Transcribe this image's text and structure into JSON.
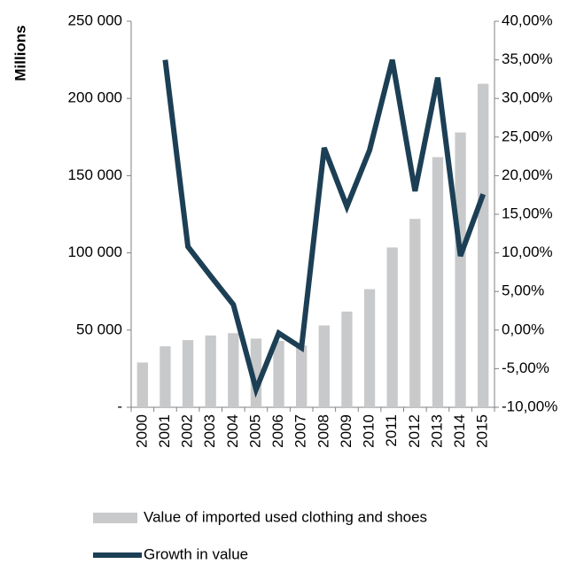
{
  "chart_data": {
    "type": "bar-line",
    "ylabel": "Millions",
    "categories": [
      "2000",
      "2001",
      "2002",
      "2003",
      "2004",
      "2005",
      "2006",
      "2007",
      "2008",
      "2009",
      "2010",
      "2011",
      "2012",
      "2013",
      "2014",
      "2015"
    ],
    "series": [
      {
        "name": "Value of imported used clothing and shoes",
        "type": "bar",
        "color": "#c8c9cb",
        "values": [
          29000,
          39500,
          43500,
          46500,
          48000,
          44500,
          43000,
          40000,
          53000,
          62000,
          76500,
          103500,
          122000,
          162000,
          178000,
          209500
        ]
      },
      {
        "name": "Growth in value",
        "type": "line",
        "axis": "y2",
        "color": "#1c3f55",
        "values": [
          null,
          35,
          10.8,
          7,
          3.3,
          -7.7,
          -0.4,
          -2.3,
          23.6,
          16,
          23.3,
          35,
          18,
          32.7,
          9.6,
          17.6
        ]
      }
    ],
    "ylim": [
      0,
      250000
    ],
    "yticks": [
      {
        "value": 0,
        "label": "-"
      },
      {
        "value": 50000,
        "label": "50 000"
      },
      {
        "value": 100000,
        "label": "100 000"
      },
      {
        "value": 150000,
        "label": "150 000"
      },
      {
        "value": 200000,
        "label": "200 000"
      },
      {
        "value": 250000,
        "label": "250 000"
      }
    ],
    "y2lim": [
      -10,
      40
    ],
    "y2ticks": [
      {
        "value": -10,
        "label": "-10,00%"
      },
      {
        "value": -5,
        "label": "-5,00%"
      },
      {
        "value": 0,
        "label": "0,00%"
      },
      {
        "value": 5,
        "label": "5,00%"
      },
      {
        "value": 10,
        "label": "10,00%"
      },
      {
        "value": 15,
        "label": "15,00%"
      },
      {
        "value": 20,
        "label": "20,00%"
      },
      {
        "value": 25,
        "label": "25,00%"
      },
      {
        "value": 30,
        "label": "30,00%"
      },
      {
        "value": 35,
        "label": "35,00%"
      },
      {
        "value": 40,
        "label": "40,00%"
      }
    ],
    "legend": "bottom"
  }
}
